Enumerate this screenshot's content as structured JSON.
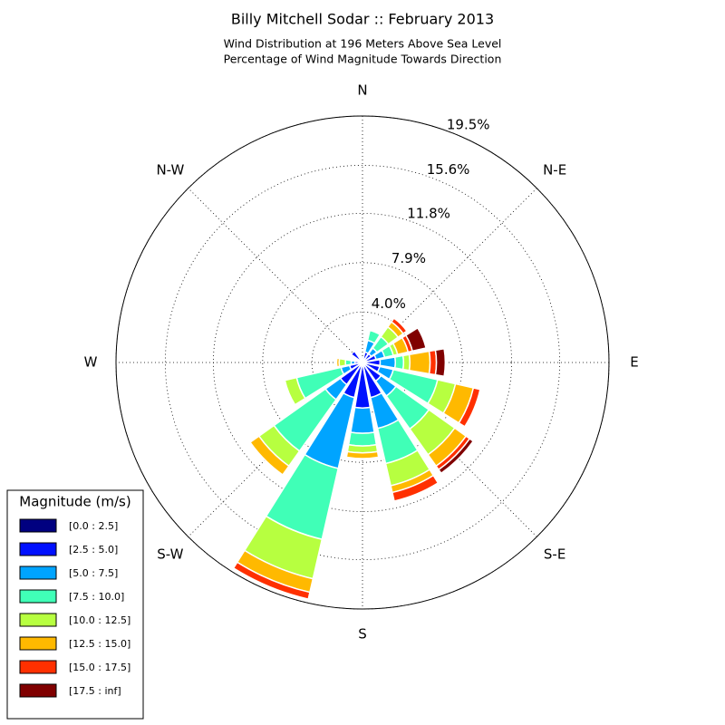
{
  "chart_data": {
    "type": "windrose",
    "title": "Billy Mitchell Sodar :: February 2013",
    "subtitle": [
      "Wind Distribution at 196 Meters Above Sea Level",
      "Percentage of Wind Magnitude Towards Direction"
    ],
    "categories": [
      "N",
      null,
      "N-E",
      null,
      "E",
      null,
      "S-E",
      null,
      "S",
      null,
      "S-W",
      null,
      "W",
      null,
      "N-W",
      null
    ],
    "ylim": [
      0,
      19.5
    ],
    "yticks": [
      {
        "value": 4.0,
        "label": "4.0%"
      },
      {
        "value": 7.9,
        "label": "7.9%"
      },
      {
        "value": 11.8,
        "label": "11.8%"
      },
      {
        "value": 15.6,
        "label": "15.6%"
      },
      {
        "value": 19.5,
        "label": "19.5%"
      }
    ],
    "grid": true,
    "legend_title": "Magnitude (m/s)",
    "legend_position": "lower left",
    "series": [
      {
        "name": "[0.0 : 2.5]",
        "color": "#000080",
        "values": [
          0,
          0.15,
          0.15,
          0.15,
          0.2,
          0.2,
          0.2,
          0.2,
          0.2,
          0.2,
          0.2,
          0.2,
          0.15,
          0.1,
          0.15,
          0.1
        ]
      },
      {
        "name": "[2.5 : 5.0]",
        "color": "#0010ff",
        "values": [
          0.3,
          0.7,
          0.7,
          0.95,
          1.2,
          1.2,
          1.6,
          2.65,
          3.4,
          2.65,
          1.95,
          0.85,
          0.45,
          0.2,
          0.95,
          0.2
        ]
      },
      {
        "name": "[5.0 : 7.5]",
        "color": "#00a4ff",
        "values": [
          0.15,
          0.95,
          0.55,
          0.7,
          1.2,
          1.1,
          1.45,
          2.5,
          2.0,
          5.75,
          1.45,
          0.7,
          0.3,
          0,
          0,
          0
        ]
      },
      {
        "name": "[7.5 : 10.0]",
        "color": "#40ffb7",
        "values": [
          0,
          0.8,
          1.1,
          0.7,
          0.65,
          3.6,
          3.2,
          2.85,
          1.0,
          5.75,
          5.0,
          3.6,
          0.45,
          0,
          0,
          0
        ]
      },
      {
        "name": "[10.0 : 12.5]",
        "color": "#b7ff40",
        "values": [
          0,
          0,
          0.95,
          0.35,
          0.5,
          1.45,
          2.5,
          1.8,
          0.55,
          3.2,
          1.45,
          0.95,
          0.5,
          0,
          0,
          0
        ]
      },
      {
        "name": "[12.5 : 15.0]",
        "color": "#ffb900",
        "values": [
          0,
          0,
          0.5,
          0.85,
          1.6,
          1.45,
          1.1,
          0.55,
          0.45,
          1.1,
          0.85,
          0,
          0.2,
          0,
          0,
          0
        ]
      },
      {
        "name": "[15.0 : 17.5]",
        "color": "#ff3000",
        "values": [
          0,
          0,
          0.35,
          0.35,
          0.5,
          0.55,
          0.35,
          0.7,
          0,
          0.55,
          0,
          0,
          0,
          0,
          0,
          0
        ]
      },
      {
        "name": "[17.5 : inf]",
        "color": "#800000",
        "values": [
          0,
          0,
          0,
          1.1,
          0.7,
          0,
          0.35,
          0,
          0,
          0,
          0,
          0,
          0,
          0,
          0,
          0
        ]
      }
    ]
  }
}
